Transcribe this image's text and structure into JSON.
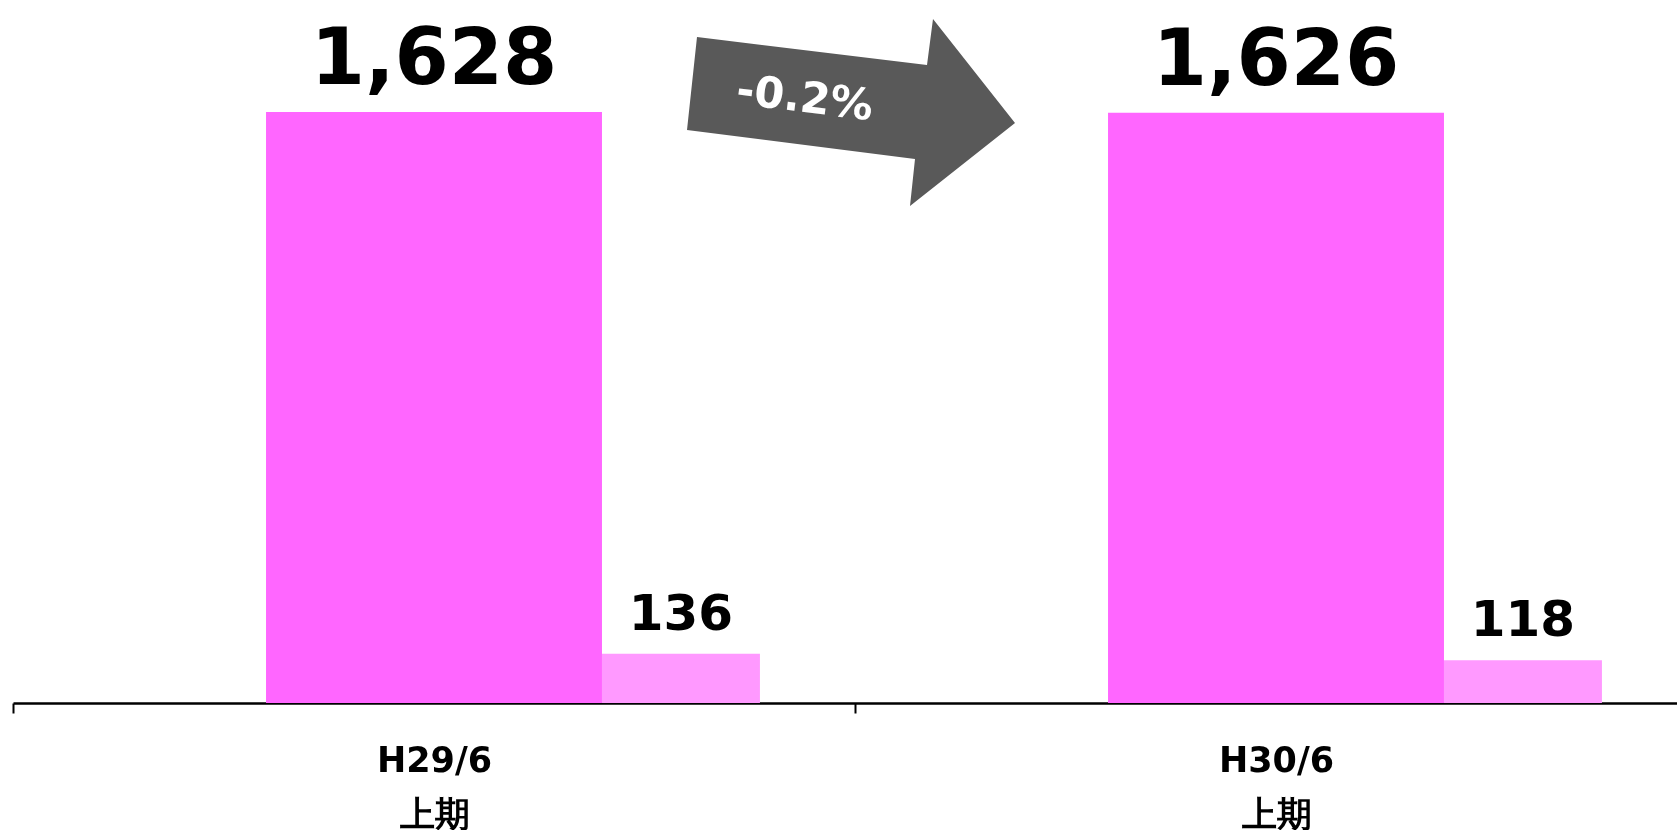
{
  "chart_data": {
    "type": "bar",
    "categories": [
      "H29/6\n上期",
      "H30/6\n上期"
    ],
    "series": [
      {
        "color": "#ff66ff",
        "values": [
          1628,
          1626
        ],
        "value_labels": [
          "1,628",
          "1,626"
        ]
      },
      {
        "color": "#ff99ff",
        "values": [
          136,
          118
        ],
        "value_labels": [
          "136",
          "118"
        ]
      }
    ],
    "annotations": [
      "-0.2%"
    ]
  }
}
